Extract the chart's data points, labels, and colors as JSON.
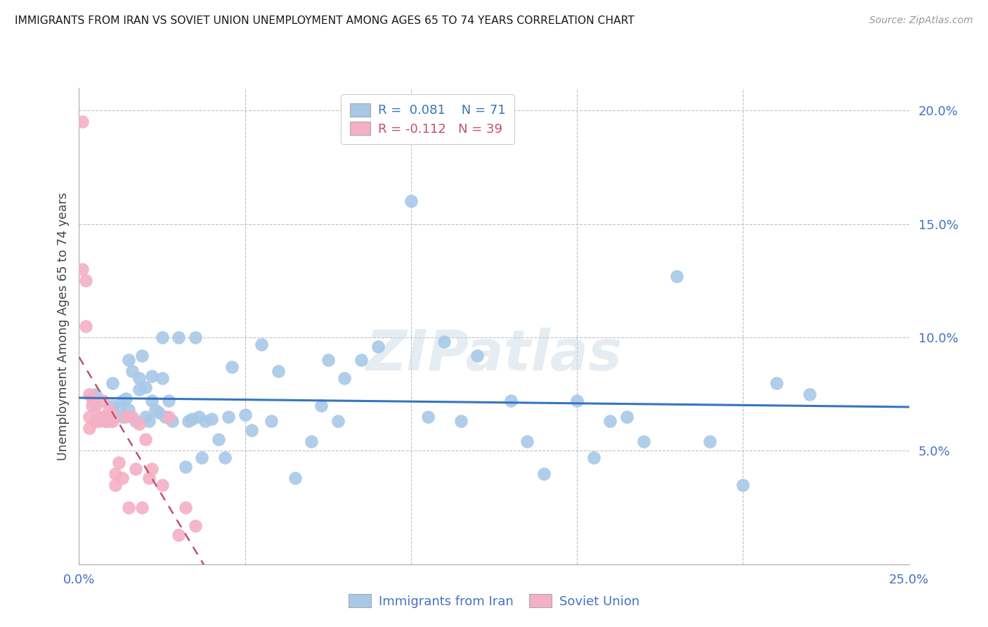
{
  "title": "IMMIGRANTS FROM IRAN VS SOVIET UNION UNEMPLOYMENT AMONG AGES 65 TO 74 YEARS CORRELATION CHART",
  "source": "Source: ZipAtlas.com",
  "ylabel": "Unemployment Among Ages 65 to 74 years",
  "xmin": 0.0,
  "xmax": 0.25,
  "ymin": 0.0,
  "ymax": 0.21,
  "iran_R": 0.081,
  "iran_N": 71,
  "soviet_R": -0.112,
  "soviet_N": 39,
  "iran_color": "#a8c8e8",
  "iran_line_color": "#3575c0",
  "soviet_color": "#f4b0c4",
  "soviet_line_color": "#c05070",
  "legend_iran_label": "Immigrants from Iran",
  "legend_soviet_label": "Soviet Union",
  "watermark": "ZIPatlas",
  "iran_x": [
    0.005,
    0.008,
    0.01,
    0.01,
    0.012,
    0.013,
    0.013,
    0.014,
    0.015,
    0.015,
    0.016,
    0.017,
    0.018,
    0.018,
    0.019,
    0.02,
    0.02,
    0.021,
    0.022,
    0.022,
    0.023,
    0.024,
    0.025,
    0.025,
    0.026,
    0.027,
    0.028,
    0.03,
    0.032,
    0.033,
    0.034,
    0.035,
    0.036,
    0.037,
    0.038,
    0.04,
    0.042,
    0.044,
    0.045,
    0.046,
    0.05,
    0.052,
    0.055,
    0.058,
    0.06,
    0.065,
    0.07,
    0.073,
    0.075,
    0.078,
    0.08,
    0.085,
    0.09,
    0.1,
    0.105,
    0.11,
    0.115,
    0.12,
    0.13,
    0.135,
    0.14,
    0.15,
    0.155,
    0.16,
    0.165,
    0.17,
    0.18,
    0.19,
    0.2,
    0.21,
    0.22
  ],
  "iran_y": [
    0.075,
    0.063,
    0.07,
    0.08,
    0.069,
    0.072,
    0.065,
    0.073,
    0.068,
    0.09,
    0.085,
    0.063,
    0.077,
    0.082,
    0.092,
    0.065,
    0.078,
    0.063,
    0.083,
    0.072,
    0.068,
    0.067,
    0.1,
    0.082,
    0.065,
    0.072,
    0.063,
    0.1,
    0.043,
    0.063,
    0.064,
    0.1,
    0.065,
    0.047,
    0.063,
    0.064,
    0.055,
    0.047,
    0.065,
    0.087,
    0.066,
    0.059,
    0.097,
    0.063,
    0.085,
    0.038,
    0.054,
    0.07,
    0.09,
    0.063,
    0.082,
    0.09,
    0.096,
    0.16,
    0.065,
    0.098,
    0.063,
    0.092,
    0.072,
    0.054,
    0.04,
    0.072,
    0.047,
    0.063,
    0.065,
    0.054,
    0.127,
    0.054,
    0.035,
    0.08,
    0.075
  ],
  "soviet_x": [
    0.001,
    0.001,
    0.002,
    0.002,
    0.003,
    0.003,
    0.003,
    0.004,
    0.004,
    0.005,
    0.005,
    0.006,
    0.006,
    0.007,
    0.007,
    0.008,
    0.008,
    0.009,
    0.009,
    0.01,
    0.01,
    0.011,
    0.011,
    0.012,
    0.013,
    0.014,
    0.015,
    0.016,
    0.017,
    0.018,
    0.019,
    0.02,
    0.021,
    0.022,
    0.025,
    0.027,
    0.03,
    0.032,
    0.035
  ],
  "soviet_y": [
    0.195,
    0.13,
    0.125,
    0.105,
    0.065,
    0.075,
    0.06,
    0.073,
    0.07,
    0.063,
    0.07,
    0.065,
    0.063,
    0.065,
    0.072,
    0.065,
    0.063,
    0.068,
    0.063,
    0.065,
    0.063,
    0.035,
    0.04,
    0.045,
    0.038,
    0.065,
    0.025,
    0.065,
    0.042,
    0.062,
    0.025,
    0.055,
    0.038,
    0.042,
    0.035,
    0.065,
    0.013,
    0.025,
    0.017
  ]
}
